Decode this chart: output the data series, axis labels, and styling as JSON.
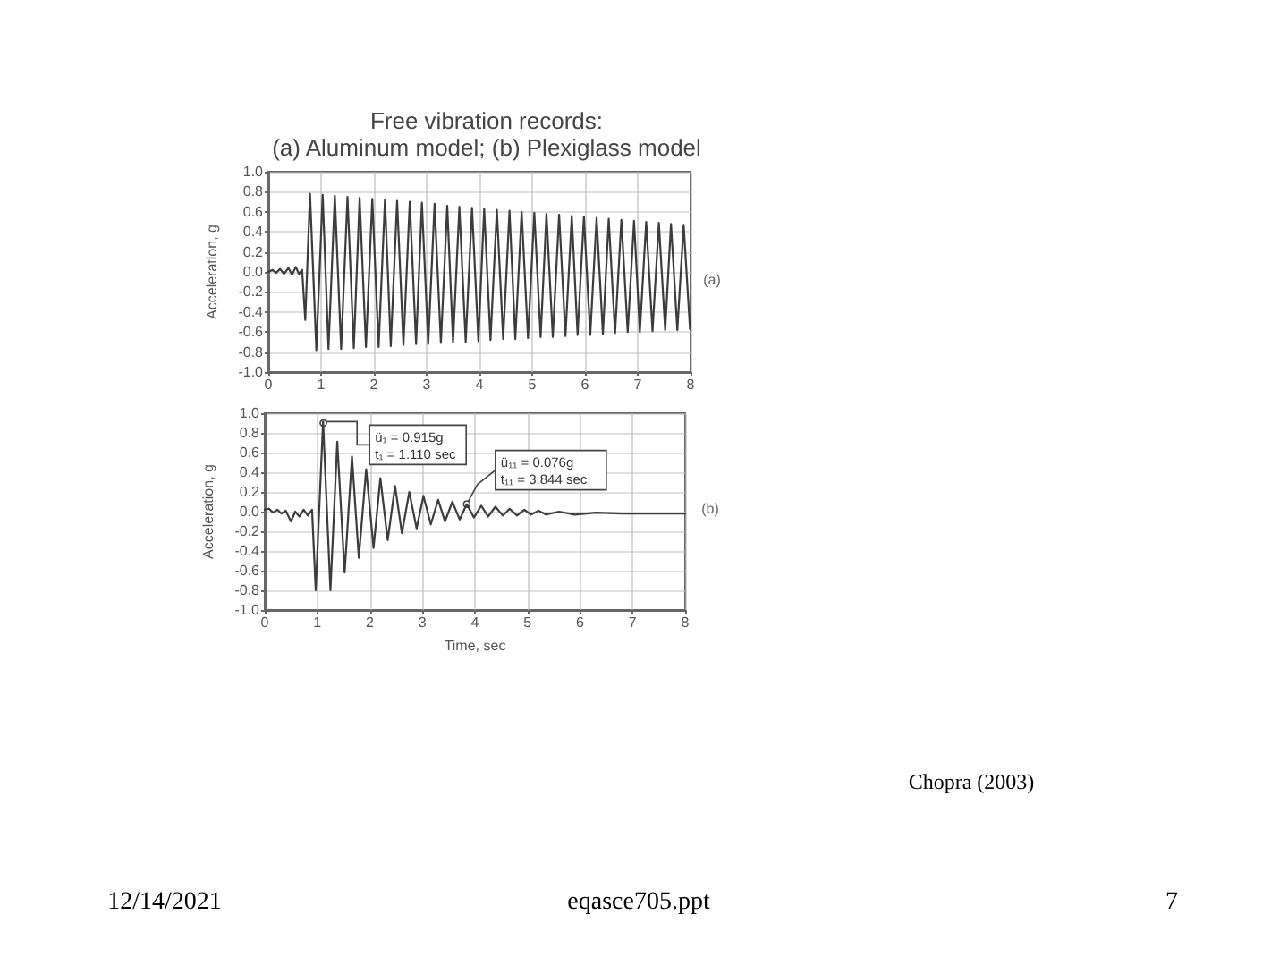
{
  "chart_data": [
    {
      "type": "line",
      "title": "Free vibration records:",
      "subtitle": "(a) Aluminum model; (b) Plexiglass model",
      "ylabel": "Acceleration, g",
      "x": [
        0,
        0.08,
        0.15,
        0.22,
        0.3,
        0.38,
        0.45,
        0.52,
        0.58,
        0.64,
        0.7,
        0.79,
        0.91,
        1.03,
        1.14,
        1.26,
        1.38,
        1.5,
        1.62,
        1.73,
        1.85,
        1.97,
        2.09,
        2.21,
        2.32,
        2.44,
        2.56,
        2.68,
        2.8,
        2.91,
        3.03,
        3.15,
        3.27,
        3.39,
        3.5,
        3.62,
        3.74,
        3.86,
        3.98,
        4.09,
        4.21,
        4.33,
        4.45,
        4.57,
        4.68,
        4.8,
        4.92,
        5.04,
        5.16,
        5.27,
        5.39,
        5.51,
        5.63,
        5.75,
        5.86,
        5.98,
        6.1,
        6.22,
        6.34,
        6.45,
        6.57,
        6.69,
        6.81,
        6.93,
        7.04,
        7.16,
        7.28,
        7.4,
        7.52,
        7.63,
        7.75,
        7.87,
        7.99
      ],
      "series": [
        {
          "color": "#3c3c3c",
          "values": [
            0,
            0.02,
            -0.01,
            0.03,
            -0.02,
            0.04,
            -0.03,
            0.05,
            -0.02,
            0.02,
            -0.48,
            0.78,
            -0.78,
            0.77,
            -0.77,
            0.76,
            -0.77,
            0.75,
            -0.76,
            0.74,
            -0.75,
            0.73,
            -0.75,
            0.72,
            -0.74,
            0.71,
            -0.73,
            0.7,
            -0.72,
            0.69,
            -0.72,
            0.68,
            -0.71,
            0.66,
            -0.7,
            0.65,
            -0.7,
            0.64,
            -0.69,
            0.63,
            -0.68,
            0.62,
            -0.67,
            0.61,
            -0.67,
            0.6,
            -0.66,
            0.59,
            -0.65,
            0.58,
            -0.65,
            0.57,
            -0.64,
            0.56,
            -0.63,
            0.55,
            -0.63,
            0.54,
            -0.62,
            0.53,
            -0.61,
            0.52,
            -0.6,
            0.51,
            -0.6,
            0.5,
            -0.59,
            0.49,
            -0.58,
            0.48,
            -0.58,
            0.47,
            -0.57
          ]
        }
      ],
      "xlim": [
        0,
        8
      ],
      "xticks": [
        0,
        1,
        2,
        3,
        4,
        5,
        6,
        7,
        8
      ],
      "ylim": [
        -1,
        1
      ],
      "yticks": [
        {
          "value": -1,
          "label": "-1.0"
        },
        -0.8,
        -0.6,
        -0.4,
        -0.2,
        {
          "value": 0,
          "label": "0.0"
        },
        0.2,
        0.4,
        0.6,
        0.8,
        {
          "value": 1,
          "label": "1.0"
        }
      ],
      "grid": true,
      "marker": "none",
      "annotations": [
        "(a)"
      ]
    },
    {
      "type": "line",
      "xlabel": "Time, sec",
      "ylabel": "Acceleration, g",
      "x": [
        0,
        0.08,
        0.16,
        0.24,
        0.32,
        0.4,
        0.5,
        0.58,
        0.66,
        0.74,
        0.82,
        0.9,
        0.97,
        1.11,
        1.25,
        1.38,
        1.52,
        1.66,
        1.79,
        1.93,
        2.07,
        2.2,
        2.34,
        2.48,
        2.61,
        2.75,
        2.89,
        3.02,
        3.16,
        3.3,
        3.43,
        3.57,
        3.71,
        3.844,
        3.98,
        4.12,
        4.25,
        4.39,
        4.53,
        4.66,
        4.8,
        4.94,
        5.07,
        5.21,
        5.35,
        5.6,
        5.9,
        6.3,
        6.8,
        7.4,
        8
      ],
      "series": [
        {
          "color": "#3c3c3c",
          "values": [
            0.02,
            0.03,
            -0.01,
            0.02,
            -0.02,
            0.01,
            -0.1,
            0,
            -0.05,
            0.02,
            -0.04,
            0.02,
            -0.8,
            0.915,
            -0.8,
            0.71,
            -0.62,
            0.56,
            -0.47,
            0.43,
            -0.37,
            0.34,
            -0.29,
            0.26,
            -0.22,
            0.2,
            -0.17,
            0.16,
            -0.13,
            0.12,
            -0.1,
            0.1,
            -0.08,
            0.076,
            -0.06,
            0.06,
            -0.05,
            0.05,
            -0.04,
            0.03,
            -0.04,
            0.02,
            -0.03,
            0.01,
            -0.03,
            0,
            -0.03,
            -0.01,
            -0.02,
            -0.02,
            -0.02
          ]
        }
      ],
      "xlim": [
        0,
        8
      ],
      "xticks": [
        0,
        1,
        2,
        3,
        4,
        5,
        6,
        7,
        8
      ],
      "ylim": [
        -1,
        1
      ],
      "yticks": [
        {
          "value": -1,
          "label": "-1.0"
        },
        -0.8,
        -0.6,
        -0.4,
        -0.2,
        {
          "value": 0,
          "label": "0.0"
        },
        0.2,
        0.4,
        0.6,
        0.8,
        {
          "value": 1,
          "label": "1.0"
        }
      ],
      "grid": true,
      "marker": "none",
      "annotations": [
        {
          "text": "ü₁ = 0.915g\nt₁ = 1.110 sec",
          "x": 1.11,
          "y": 0.915
        },
        {
          "text": "ü₁₁ = 0.076g\nt₁₁ = 3.844 sec",
          "x": 3.844,
          "y": 0.076
        },
        "(b)",
        "Chopra (2003)",
        "12/14/2021",
        "eqasce705.ppt",
        "7"
      ]
    }
  ]
}
